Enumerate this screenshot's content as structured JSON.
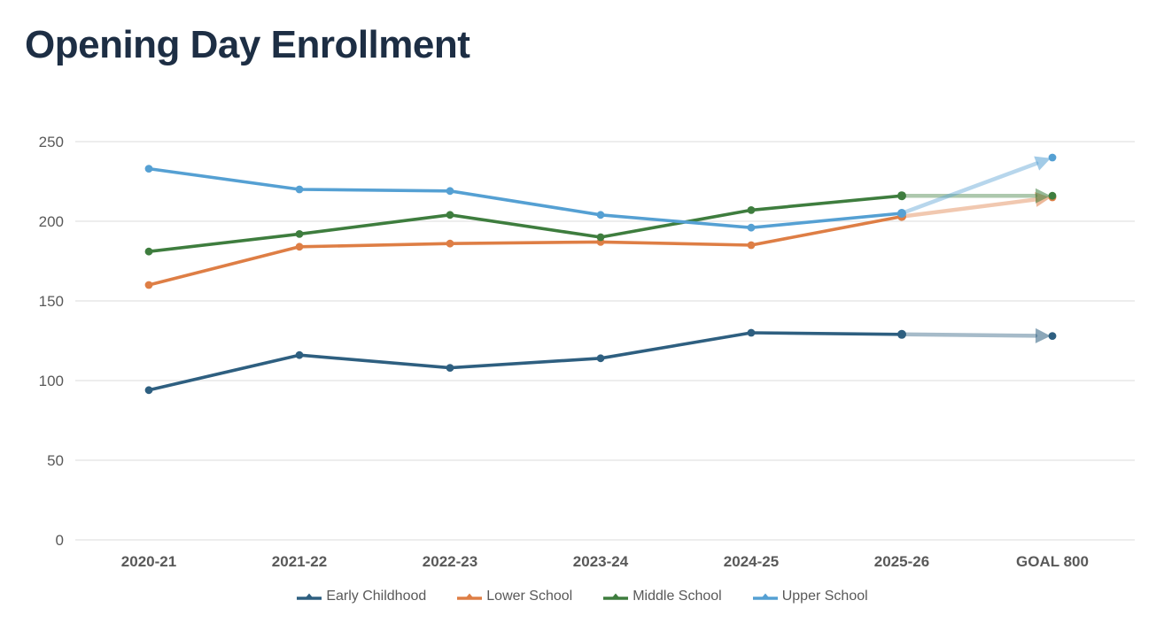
{
  "page": {
    "title": "Opening Day Enrollment"
  },
  "chart_data": {
    "type": "line",
    "title": "Opening Day Enrollment",
    "xlabel": "",
    "ylabel": "",
    "categories": [
      "2020-21",
      "2021-22",
      "2022-23",
      "2023-24",
      "2024-25",
      "2025-26",
      "GOAL 800"
    ],
    "goal_category": "GOAL 800",
    "y_ticks": [
      0,
      50,
      100,
      150,
      200,
      250
    ],
    "ylim": [
      0,
      250
    ],
    "grid": "horizontal",
    "legend_position": "bottom",
    "goal_segment_style": "faded line with arrowhead and end dot",
    "series": [
      {
        "name": "Early Childhood",
        "color": "#2e5f80",
        "values": [
          94,
          116,
          108,
          114,
          130,
          129
        ],
        "goal": 128
      },
      {
        "name": "Lower School",
        "color": "#de7e45",
        "values": [
          160,
          184,
          186,
          187,
          185,
          203
        ],
        "goal": 215
      },
      {
        "name": "Middle School",
        "color": "#3e7d3e",
        "values": [
          181,
          192,
          204,
          190,
          207,
          216
        ],
        "goal": 216
      },
      {
        "name": "Upper School",
        "color": "#55a0d3",
        "values": [
          233,
          220,
          219,
          204,
          196,
          205
        ],
        "goal": 240
      }
    ],
    "colors": {
      "title": "#1d2e44",
      "axis_text": "#595959",
      "gridline": "#e2e2e2"
    }
  }
}
